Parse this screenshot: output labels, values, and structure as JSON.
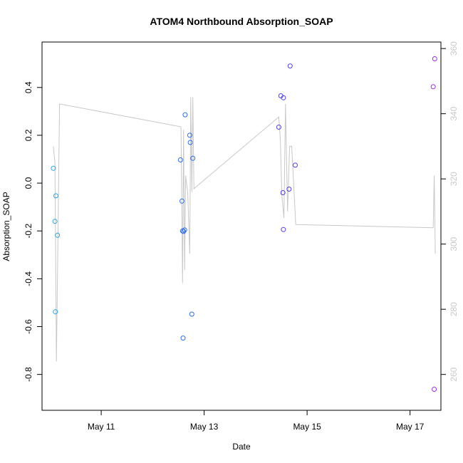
{
  "chart_data": {
    "type": "scatter",
    "title": "ATOM4 Northbound Absorption_SOAP",
    "xlabel": "Date",
    "ylabel": "Absorption_SOAP",
    "x_ticks": [
      "May 11",
      "May 13",
      "May 15",
      "May 17"
    ],
    "x_tick_values": [
      11,
      13,
      15,
      17
    ],
    "xlim": [
      9.85,
      17.6
    ],
    "ylim": [
      -0.95,
      0.59
    ],
    "y_ticks": [
      -0.8,
      -0.6,
      -0.4,
      -0.2,
      0.0,
      0.2,
      0.4
    ],
    "y_tick_labels": [
      "-0.8",
      "-0.6",
      "-0.4",
      "-0.2",
      "0.0",
      "0.2",
      "0.4"
    ],
    "y2lim": [
      249,
      362
    ],
    "y2_ticks": [
      260,
      280,
      300,
      320,
      340,
      360
    ],
    "y2_tick_labels": [
      "260",
      "280",
      "300",
      "320",
      "340",
      "360"
    ],
    "grid": false,
    "series": [
      {
        "color": "#29a3e0",
        "points": [
          {
            "x": 10.07,
            "y": 0.062
          },
          {
            "x": 10.12,
            "y": -0.053
          },
          {
            "x": 10.1,
            "y": -0.16
          },
          {
            "x": 10.15,
            "y": -0.218
          },
          {
            "x": 10.11,
            "y": -0.538
          }
        ]
      },
      {
        "color": "#2e6ee6",
        "points": [
          {
            "x": 12.54,
            "y": 0.097
          },
          {
            "x": 12.57,
            "y": -0.075
          },
          {
            "x": 12.58,
            "y": -0.2
          },
          {
            "x": 12.6,
            "y": -0.202
          },
          {
            "x": 12.62,
            "y": -0.196
          },
          {
            "x": 12.63,
            "y": 0.286
          },
          {
            "x": 12.72,
            "y": 0.2
          },
          {
            "x": 12.73,
            "y": 0.17
          },
          {
            "x": 12.78,
            "y": 0.104
          },
          {
            "x": 12.76,
            "y": -0.548
          },
          {
            "x": 12.59,
            "y": -0.648
          }
        ]
      },
      {
        "color": "#4f40e8",
        "points": [
          {
            "x": 14.45,
            "y": 0.234
          },
          {
            "x": 14.49,
            "y": 0.365
          },
          {
            "x": 14.53,
            "y": -0.04
          },
          {
            "x": 14.54,
            "y": 0.357
          },
          {
            "x": 14.54,
            "y": -0.194
          },
          {
            "x": 14.65,
            "y": -0.025
          },
          {
            "x": 14.67,
            "y": 0.49
          },
          {
            "x": 14.77,
            "y": 0.075
          }
        ]
      },
      {
        "color": "#9b2be0",
        "points": [
          {
            "x": 17.45,
            "y": 0.403
          },
          {
            "x": 17.48,
            "y": 0.52
          },
          {
            "x": 17.47,
            "y": -0.862
          }
        ]
      }
    ],
    "secondary_line": {
      "color": "#c8c8c8",
      "axis": "right",
      "points": [
        {
          "x": 10.07,
          "y": 330
        },
        {
          "x": 10.1,
          "y": 325
        },
        {
          "x": 10.13,
          "y": 264
        },
        {
          "x": 10.15,
          "y": 290
        },
        {
          "x": 10.19,
          "y": 343
        },
        {
          "x": 12.55,
          "y": 336
        },
        {
          "x": 12.58,
          "y": 288
        },
        {
          "x": 12.6,
          "y": 335
        },
        {
          "x": 12.62,
          "y": 292
        },
        {
          "x": 12.64,
          "y": 321
        },
        {
          "x": 12.68,
          "y": 316
        },
        {
          "x": 12.72,
          "y": 297
        },
        {
          "x": 12.74,
          "y": 345
        },
        {
          "x": 12.76,
          "y": 316
        },
        {
          "x": 12.78,
          "y": 345
        },
        {
          "x": 12.8,
          "y": 317
        },
        {
          "x": 14.45,
          "y": 339
        },
        {
          "x": 14.48,
          "y": 332
        },
        {
          "x": 14.51,
          "y": 315
        },
        {
          "x": 14.55,
          "y": 308
        },
        {
          "x": 14.58,
          "y": 343
        },
        {
          "x": 14.62,
          "y": 310
        },
        {
          "x": 14.66,
          "y": 330
        },
        {
          "x": 14.7,
          "y": 330
        },
        {
          "x": 14.78,
          "y": 306
        },
        {
          "x": 17.45,
          "y": 305
        },
        {
          "x": 17.47,
          "y": 321
        },
        {
          "x": 17.49,
          "y": 297
        }
      ]
    }
  }
}
